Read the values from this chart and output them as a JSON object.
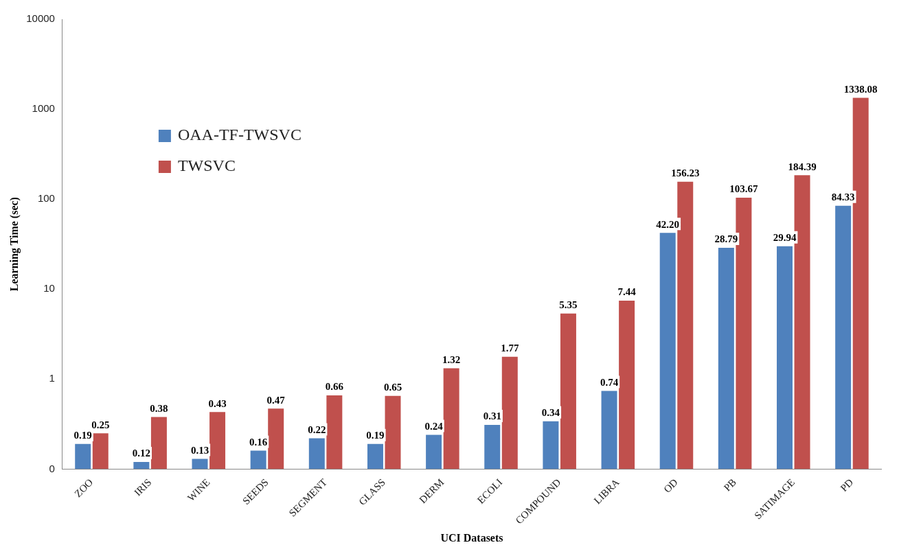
{
  "chart_data": {
    "type": "bar",
    "xlabel": "UCI Datasets",
    "ylabel": "Learning Time (sec)",
    "categories": [
      "ZOO",
      "IRIS",
      "WINE",
      "SEEDS",
      "SEGMENT",
      "GLASS",
      "DERM",
      "ECOLI",
      "COMPOUND",
      "LIBRA",
      "OD",
      "PB",
      "SATIMAGE",
      "PD"
    ],
    "series": [
      {
        "name": "OAA-TF-TWSVC",
        "color": "#4f81bd",
        "values": [
          0.19,
          0.12,
          0.13,
          0.16,
          0.22,
          0.19,
          0.24,
          0.31,
          0.34,
          0.74,
          42.2,
          28.79,
          29.94,
          84.33
        ],
        "value_labels": [
          "0.19",
          "0.12",
          "0.13",
          "0.16",
          "0.22",
          "0.19",
          "0.24",
          "0.31",
          "0.34",
          "0.74",
          "42.20",
          "28.79",
          "29.94",
          "84.33"
        ]
      },
      {
        "name": "TWSVC",
        "color": "#c0504d",
        "values": [
          0.25,
          0.38,
          0.43,
          0.47,
          0.66,
          0.65,
          1.32,
          1.77,
          5.35,
          7.44,
          156.23,
          103.67,
          184.39,
          1338.08
        ]
      }
    ],
    "log": "y",
    "ylim": [
      0.1,
      10000
    ],
    "yticks": [
      {
        "value": 0.1,
        "label": "0"
      },
      1,
      10,
      100,
      1000,
      10000
    ],
    "grid": false,
    "legend": "top left",
    "data_labels": true
  }
}
